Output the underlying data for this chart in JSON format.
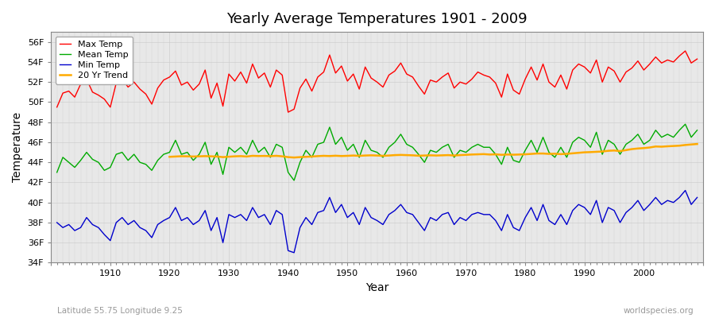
{
  "title": "Yearly Average Temperatures 1901 - 2009",
  "xlabel": "Year",
  "ylabel": "Temperature",
  "subtitle_left": "Latitude 55.75 Longitude 9.25",
  "subtitle_right": "worldspecies.org",
  "years": [
    1901,
    1902,
    1903,
    1904,
    1905,
    1906,
    1907,
    1908,
    1909,
    1910,
    1911,
    1912,
    1913,
    1914,
    1915,
    1916,
    1917,
    1918,
    1919,
    1920,
    1921,
    1922,
    1923,
    1924,
    1925,
    1926,
    1927,
    1928,
    1929,
    1930,
    1931,
    1932,
    1933,
    1934,
    1935,
    1936,
    1937,
    1938,
    1939,
    1940,
    1941,
    1942,
    1943,
    1944,
    1945,
    1946,
    1947,
    1948,
    1949,
    1950,
    1951,
    1952,
    1953,
    1954,
    1955,
    1956,
    1957,
    1958,
    1959,
    1960,
    1961,
    1962,
    1963,
    1964,
    1965,
    1966,
    1967,
    1968,
    1969,
    1970,
    1971,
    1972,
    1973,
    1974,
    1975,
    1976,
    1977,
    1978,
    1979,
    1980,
    1981,
    1982,
    1983,
    1984,
    1985,
    1986,
    1987,
    1988,
    1989,
    1990,
    1991,
    1992,
    1993,
    1994,
    1995,
    1996,
    1997,
    1998,
    1999,
    2000,
    2001,
    2002,
    2003,
    2004,
    2005,
    2006,
    2007,
    2008,
    2009
  ],
  "max_temp": [
    49.5,
    50.9,
    51.1,
    50.5,
    51.8,
    52.3,
    51.0,
    50.7,
    50.3,
    49.5,
    51.9,
    52.3,
    51.5,
    52.0,
    51.3,
    50.8,
    49.8,
    51.4,
    52.2,
    52.5,
    53.1,
    51.7,
    52.0,
    51.2,
    51.8,
    53.2,
    50.4,
    51.9,
    49.6,
    52.8,
    52.1,
    53.0,
    51.9,
    53.8,
    52.4,
    52.9,
    51.5,
    53.2,
    52.7,
    49.0,
    49.3,
    51.4,
    52.3,
    51.1,
    52.5,
    53.0,
    54.7,
    52.9,
    53.6,
    52.1,
    52.8,
    51.3,
    53.5,
    52.4,
    52.0,
    51.5,
    52.7,
    53.1,
    53.9,
    52.8,
    52.5,
    51.6,
    50.8,
    52.2,
    52.0,
    52.5,
    52.9,
    51.4,
    52.0,
    51.8,
    52.3,
    53.0,
    52.7,
    52.5,
    51.9,
    50.5,
    52.8,
    51.2,
    50.8,
    52.3,
    53.5,
    52.2,
    53.8,
    52.0,
    51.5,
    52.7,
    51.3,
    53.2,
    53.8,
    53.5,
    52.9,
    54.2,
    52.0,
    53.5,
    53.1,
    52.0,
    53.0,
    53.4,
    54.1,
    53.2,
    53.8,
    54.5,
    53.9,
    54.2,
    54.0,
    54.6,
    55.1,
    53.9,
    54.3
  ],
  "mean_temp": [
    43.0,
    44.5,
    44.0,
    43.5,
    44.2,
    45.0,
    44.3,
    44.0,
    43.2,
    43.5,
    44.8,
    45.0,
    44.2,
    44.8,
    44.0,
    43.8,
    43.2,
    44.2,
    44.8,
    45.0,
    46.2,
    44.8,
    45.0,
    44.2,
    44.8,
    46.0,
    43.8,
    45.0,
    42.8,
    45.5,
    45.0,
    45.5,
    44.8,
    46.2,
    45.0,
    45.5,
    44.5,
    45.8,
    45.5,
    43.0,
    42.2,
    44.0,
    45.2,
    44.5,
    45.8,
    46.0,
    47.5,
    45.8,
    46.5,
    45.2,
    45.8,
    44.5,
    46.2,
    45.2,
    45.0,
    44.5,
    45.5,
    46.0,
    46.8,
    45.8,
    45.5,
    44.8,
    44.0,
    45.2,
    45.0,
    45.5,
    45.8,
    44.5,
    45.2,
    45.0,
    45.5,
    45.8,
    45.5,
    45.5,
    44.8,
    43.8,
    45.5,
    44.2,
    44.0,
    45.2,
    46.2,
    45.0,
    46.5,
    45.0,
    44.5,
    45.5,
    44.5,
    46.0,
    46.5,
    46.2,
    45.5,
    47.0,
    44.8,
    46.2,
    45.8,
    44.8,
    45.8,
    46.2,
    46.8,
    45.8,
    46.2,
    47.2,
    46.5,
    46.8,
    46.5,
    47.2,
    47.8,
    46.5,
    47.2
  ],
  "min_temp": [
    38.0,
    37.5,
    37.8,
    37.2,
    37.5,
    38.5,
    37.8,
    37.5,
    36.8,
    36.2,
    38.0,
    38.5,
    37.8,
    38.2,
    37.5,
    37.2,
    36.5,
    37.8,
    38.2,
    38.5,
    39.5,
    38.2,
    38.5,
    37.8,
    38.2,
    39.2,
    37.2,
    38.5,
    36.0,
    38.8,
    38.5,
    38.8,
    38.2,
    39.5,
    38.5,
    38.8,
    37.8,
    39.2,
    38.8,
    35.2,
    35.0,
    37.5,
    38.5,
    37.8,
    39.0,
    39.2,
    40.5,
    39.0,
    39.8,
    38.5,
    39.0,
    37.8,
    39.5,
    38.5,
    38.2,
    37.8,
    38.8,
    39.2,
    39.8,
    39.0,
    38.8,
    38.0,
    37.2,
    38.5,
    38.2,
    38.8,
    39.0,
    37.8,
    38.5,
    38.2,
    38.8,
    39.0,
    38.8,
    38.8,
    38.2,
    37.2,
    38.8,
    37.5,
    37.2,
    38.5,
    39.5,
    38.2,
    39.8,
    38.2,
    37.8,
    38.8,
    37.8,
    39.2,
    39.8,
    39.5,
    38.8,
    40.2,
    38.0,
    39.5,
    39.2,
    38.0,
    39.0,
    39.5,
    40.2,
    39.2,
    39.8,
    40.5,
    39.8,
    40.2,
    40.0,
    40.5,
    41.2,
    39.8,
    40.5
  ],
  "trend_values_years": [
    1920,
    1921,
    1922,
    1923,
    1924,
    1925,
    1926,
    1927,
    1928,
    1929,
    1930,
    1931,
    1932,
    1933,
    1934,
    1935,
    1936,
    1937,
    1938,
    1939,
    1940,
    1941,
    1942,
    1943,
    1944,
    1945,
    1946,
    1947,
    1948,
    1949,
    1950,
    1951,
    1952,
    1953,
    1954,
    1955,
    1956,
    1957,
    1958,
    1959,
    1960,
    1961,
    1962,
    1963,
    1964,
    1965,
    1966,
    1967,
    1968,
    1969,
    1970,
    1971,
    1972,
    1973,
    1974,
    1975,
    1976,
    1977,
    1978,
    1979,
    1980,
    1981,
    1982,
    1983,
    1984,
    1985,
    1986,
    1987,
    1988,
    1989,
    1990,
    1991,
    1992,
    1993,
    1994,
    1995,
    1996,
    1997,
    1998,
    1999,
    2000,
    2001,
    2002,
    2003,
    2004,
    2005,
    2006,
    2007,
    2008,
    2009
  ],
  "trend_values": [
    44.55,
    44.58,
    44.61,
    44.6,
    44.58,
    44.6,
    44.62,
    44.6,
    44.58,
    44.52,
    44.56,
    44.6,
    44.62,
    44.58,
    44.65,
    44.63,
    44.64,
    44.62,
    44.65,
    44.6,
    44.52,
    44.48,
    44.52,
    44.55,
    44.58,
    44.62,
    44.65,
    44.63,
    44.66,
    44.63,
    44.65,
    44.68,
    44.65,
    44.68,
    44.7,
    44.68,
    44.65,
    44.68,
    44.72,
    44.74,
    44.72,
    44.7,
    44.66,
    44.68,
    44.7,
    44.68,
    44.7,
    44.72,
    44.68,
    44.72,
    44.75,
    44.78,
    44.8,
    44.82,
    44.78,
    44.8,
    44.75,
    44.78,
    44.76,
    44.78,
    44.8,
    44.84,
    44.88,
    44.88,
    44.84,
    44.86,
    44.82,
    44.85,
    44.9,
    44.95,
    45.0,
    45.02,
    45.05,
    45.08,
    45.15,
    45.18,
    45.12,
    45.22,
    45.32,
    45.38,
    45.42,
    45.48,
    45.58,
    45.56,
    45.6,
    45.63,
    45.66,
    45.73,
    45.78,
    45.83
  ],
  "color_max": "#ff0000",
  "color_mean": "#00aa00",
  "color_min": "#0000cc",
  "color_trend": "#ffaa00",
  "fig_bg_color": "#ffffff",
  "plot_bg_color": "#e8e8e8",
  "ylim": [
    34,
    57
  ],
  "yticks": [
    34,
    36,
    38,
    40,
    42,
    44,
    46,
    48,
    50,
    52,
    54,
    56
  ],
  "ytick_labels": [
    "34F",
    "36F",
    "38F",
    "40F",
    "42F",
    "44F",
    "46F",
    "48F",
    "50F",
    "52F",
    "54F",
    "56F"
  ],
  "xlim": [
    1900,
    2010
  ],
  "xticks": [
    1910,
    1920,
    1930,
    1940,
    1950,
    1960,
    1970,
    1980,
    1990,
    2000
  ],
  "grid_color": "#cccccc",
  "line_width": 1.0
}
